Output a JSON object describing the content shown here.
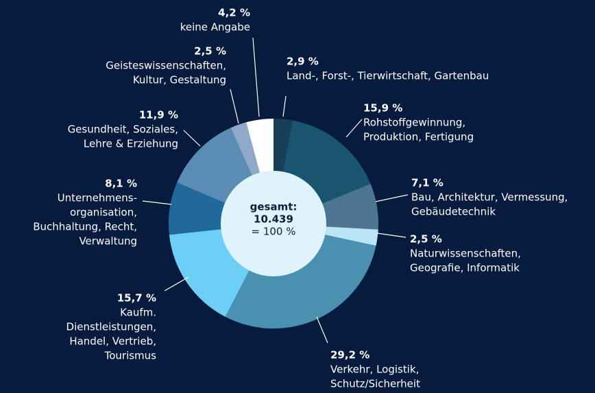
{
  "chart_data": {
    "type": "donut",
    "categories": [
      [
        "Land-, Forst-, Tierwirtschaft, Gartenbau"
      ],
      [
        "Rohstoffgewinnung,",
        "Produktion, Fertigung"
      ],
      [
        "Bau, Architektur, Vermessung,",
        "Gebäudetechnik"
      ],
      [
        "Naturwissenschaften,",
        "Geografie, Informatik"
      ],
      [
        "Verkehr, Logistik,",
        "Schutz/Sicherheit"
      ],
      [
        "Kaufm.",
        "Dienstleistungen,",
        "Handel, Vertrieb,",
        "Tourismus"
      ],
      [
        "Unternehmens-",
        "organisation,",
        "Buchhaltung, Recht,",
        "Verwaltung"
      ],
      [
        "Gesundheit, Soziales,",
        "Lehre & Erziehung"
      ],
      [
        "Geisteswissenschaften,",
        "Kultur, Gestaltung"
      ],
      [
        "keine Angabe"
      ]
    ],
    "values": [
      2.9,
      15.9,
      7.1,
      2.5,
      29.2,
      15.7,
      8.1,
      11.9,
      2.5,
      4.2
    ],
    "value_labels": [
      "2,9 %",
      "15,9 %",
      "7,1 %",
      "2,5 %",
      "29,2 %",
      "15,7 %",
      "8,1 %",
      "11,9 %",
      "2,5 %",
      "4,2 %"
    ],
    "colors": [
      "#173f58",
      "#1a5570",
      "#4b7590",
      "#b9e5f6",
      "#4a90b1",
      "#6dcff5",
      "#1f6a9a",
      "#5b8cb4",
      "#90a9c8",
      "#ffffff"
    ],
    "center_text": [
      "gesamt:",
      "10.439",
      "= 100 %"
    ]
  }
}
